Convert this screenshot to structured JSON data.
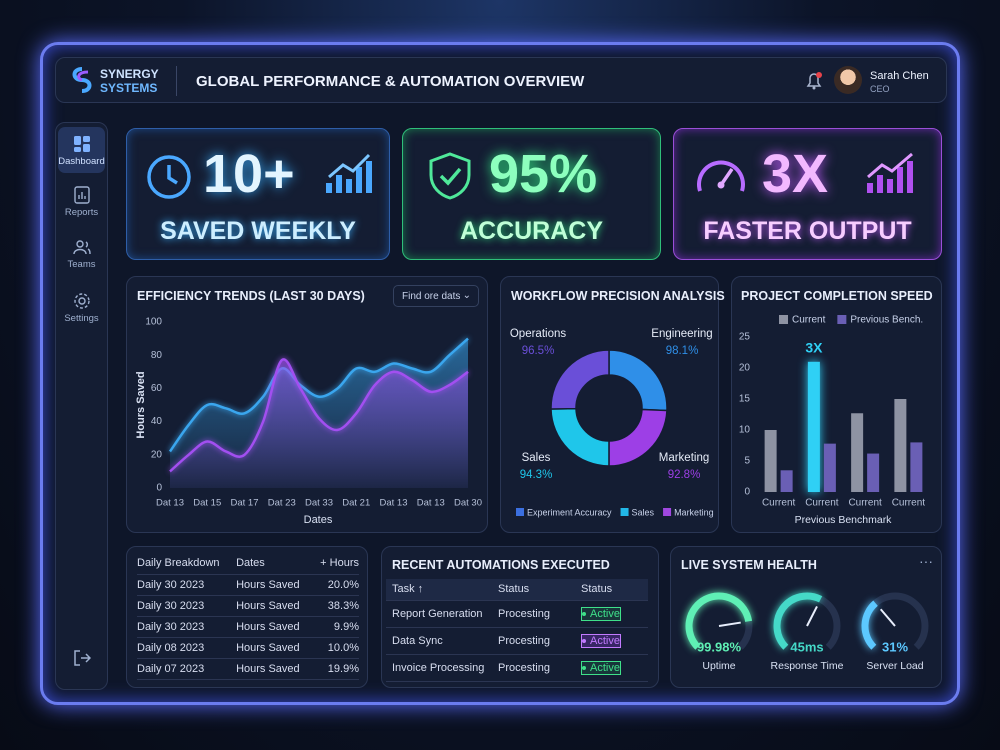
{
  "header": {
    "brand": [
      "SYNERGY",
      "SYSTEMS"
    ],
    "title": "GLOBAL PERFORMANCE & AUTOMATION OVERVIEW",
    "user": {
      "name": "Sarah Chen",
      "role": "CEO"
    }
  },
  "sidebar": {
    "items": [
      "Dashboard",
      "Reports",
      "Teams",
      "Settings"
    ]
  },
  "kpis": [
    {
      "value": "10+",
      "label": "SAVED WEEKLY"
    },
    {
      "value": "95%",
      "label": "ACCURACY"
    },
    {
      "value": "3X",
      "label": "FASTER OUTPUT"
    }
  ],
  "chart_data": [
    {
      "type": "area",
      "title": "EFFICIENCY TRENDS (LAST 30 DAYS)",
      "filter": "Find ore dats",
      "xlabel": "Dates",
      "ylabel": "Hours Saved",
      "categories": [
        "Dat 13",
        null,
        "Dat 15",
        null,
        "Dat 17",
        null,
        "Dat 23",
        null,
        "Dat 33",
        null,
        "Dat 21",
        null,
        "Dat 13",
        null,
        "Dat 13",
        null,
        "Dat 30"
      ],
      "series": [
        {
          "color": "#3aa6ee",
          "values": [
            22,
            38,
            50,
            48,
            45,
            55,
            72,
            62,
            55,
            60,
            72,
            70,
            75,
            72,
            70,
            80,
            90
          ]
        },
        {
          "color": "#a24ff0",
          "values": [
            10,
            20,
            28,
            22,
            20,
            40,
            77,
            60,
            42,
            35,
            45,
            62,
            70,
            65,
            58,
            62,
            70
          ]
        }
      ],
      "ylim": [
        0,
        100
      ],
      "yticks": [
        0,
        20,
        40,
        60,
        80,
        100
      ]
    },
    {
      "type": "donut",
      "title": "WORKFLOW PRECISION ANALYSIS",
      "categories": [
        "Engineering",
        "Marketing",
        "Sales",
        "Operations"
      ],
      "values": [
        98.1,
        92.8,
        94.3,
        96.5
      ],
      "value_labels": [
        "98.1%",
        "92.8%",
        "94.3%",
        "96.5%"
      ],
      "colors": [
        "#2f8fe8",
        "#9d3fe6",
        "#1fc6ea",
        "#6a4fd8"
      ],
      "legend": [
        {
          "label": "Experiment Accuracy",
          "color": "#3b6fe0"
        },
        {
          "label": "Sales",
          "color": "#22b8e8"
        },
        {
          "label": "Marketing",
          "color": "#a048e0"
        }
      ]
    },
    {
      "type": "bar",
      "title": "PROJECT COMPLETION SPEED",
      "xlabel": "Previous Benchmark",
      "categories": [
        "Current",
        "Current",
        "Current",
        "Current"
      ],
      "series": [
        {
          "name": "Current",
          "color": "#8e93a3",
          "values": [
            10,
            21,
            12.7,
            15
          ]
        },
        {
          "name": "Previous Bench.",
          "color": "#6a5fb5",
          "values": [
            3.5,
            7.8,
            6.2,
            8
          ]
        }
      ],
      "ylim": [
        0,
        25
      ],
      "yticks": [
        0,
        5,
        10,
        15,
        20,
        25
      ],
      "annotation": {
        "text": "3X",
        "index": 1,
        "color": "#2fd0f5"
      }
    }
  ],
  "breakdown": {
    "header": [
      "Daily Breakdown",
      "Dates",
      "+ Hours"
    ],
    "rows": [
      [
        "Daily 30 2023",
        "Hours Saved",
        "20.0%"
      ],
      [
        "Daily 30 2023",
        "Hours Saved",
        "38.3%"
      ],
      [
        "Daily 30 2023",
        "Hours Saved",
        "9.9%"
      ],
      [
        "Daily 08 2023",
        "Hours Saved",
        "10.0%"
      ],
      [
        "Daily 07 2023",
        "Hours Saved",
        "19.9%"
      ]
    ]
  },
  "automations": {
    "title": "RECENT AUTOMATIONS EXECUTED",
    "header": [
      "Task ↑",
      "Status",
      "Status"
    ],
    "rows": [
      [
        "Report Generation",
        "Procesting",
        "Active"
      ],
      [
        "Data Sync",
        "Procesting",
        "Active"
      ],
      [
        "Invoice Processing",
        "Procesting",
        "Active"
      ]
    ]
  },
  "health": {
    "title": "LIVE SYSTEM HEALTH",
    "gauges": [
      {
        "value": "99.98%",
        "label": "Uptime"
      },
      {
        "value": "45ms",
        "label": "Response Time"
      },
      {
        "value": "31%",
        "label": "Server Load"
      }
    ]
  }
}
